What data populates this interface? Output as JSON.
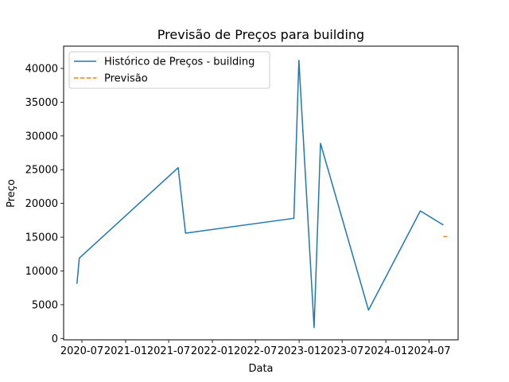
{
  "chart_data": {
    "type": "line",
    "title": "Previsão de Preços para building",
    "xlabel": "Data",
    "ylabel": "Preço",
    "x_type": "date",
    "xlim": [
      "2020-04-15",
      "2024-10-31"
    ],
    "ylim": [
      -200,
      43300
    ],
    "x_ticks": [
      {
        "date": "2020-07-01",
        "label": "2020-07"
      },
      {
        "date": "2021-01-01",
        "label": "2021-01"
      },
      {
        "date": "2021-07-01",
        "label": "2021-07"
      },
      {
        "date": "2022-01-01",
        "label": "2022-01"
      },
      {
        "date": "2022-07-01",
        "label": "2022-07"
      },
      {
        "date": "2023-01-01",
        "label": "2023-01"
      },
      {
        "date": "2023-07-01",
        "label": "2023-07"
      },
      {
        "date": "2024-01-01",
        "label": "2024-01"
      },
      {
        "date": "2024-07-01",
        "label": "2024-07"
      }
    ],
    "y_ticks": [
      0,
      5000,
      10000,
      15000,
      20000,
      25000,
      30000,
      35000,
      40000
    ],
    "grid": false,
    "legend_position": "top-left",
    "series": [
      {
        "name": "Histórico de Preços - building",
        "color": "#1f77b4",
        "style": "solid",
        "points": [
          {
            "x": "2020-06-10",
            "y": 8100
          },
          {
            "x": "2020-06-20",
            "y": 11900
          },
          {
            "x": "2021-08-10",
            "y": 25300
          },
          {
            "x": "2021-09-10",
            "y": 15600
          },
          {
            "x": "2022-12-10",
            "y": 17800
          },
          {
            "x": "2022-12-31",
            "y": 41200
          },
          {
            "x": "2023-03-05",
            "y": 1600
          },
          {
            "x": "2023-04-01",
            "y": 28900
          },
          {
            "x": "2023-10-20",
            "y": 4200
          },
          {
            "x": "2024-05-25",
            "y": 18900
          },
          {
            "x": "2024-08-30",
            "y": 16800
          }
        ]
      },
      {
        "name": "Previsão",
        "color": "#ff7f0e",
        "style": "dashed",
        "points": [
          {
            "x": "2024-08-30",
            "y": 15100
          },
          {
            "x": "2024-09-15",
            "y": 15100
          }
        ]
      }
    ]
  }
}
